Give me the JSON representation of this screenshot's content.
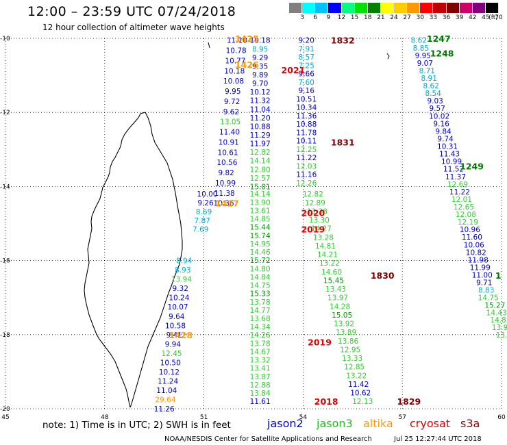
{
  "header": {
    "title": "12:00 – 23:59 UTC 07/24/2018",
    "subtitle": "12 hour collection of altimeter wave heights"
  },
  "scale": {
    "ticks": [
      "3",
      "6",
      "9",
      "12",
      "15",
      "18",
      "21",
      "24",
      "27",
      "30",
      "33",
      "36",
      "39",
      "42",
      "45",
      "70",
      "(ft)"
    ],
    "colors": [
      "#808080",
      "#00ffff",
      "#00c0ff",
      "#0000ff",
      "#00ff80",
      "#00e000",
      "#008000",
      "#ffff00",
      "#ffcc00",
      "#ff9900",
      "#ff0000",
      "#c00000",
      "#800000",
      "#cc0066",
      "#800080",
      "#000000"
    ]
  },
  "axes": {
    "lat_labels": [
      "-10",
      "-12",
      "-14",
      "-16",
      "-18",
      "-20"
    ],
    "lon_labels": [
      "45",
      "48",
      "51",
      "54",
      "57",
      "60"
    ],
    "lat_range": [
      -20,
      -10
    ],
    "lon_range": [
      45,
      60
    ]
  },
  "tracks": [
    {
      "name": "jason2-west",
      "lon_start": 52.0,
      "lat_start": -10.05,
      "lon_end": 51.6,
      "lat_end": -14.45,
      "color": "#0000cc",
      "values": [
        "11.10",
        "10.78",
        "10.77",
        "10.18",
        "10.08",
        "9.95",
        "9.72",
        "9.62",
        "13.05",
        "11.40",
        "10.91",
        "10.61",
        "10.56",
        "9.82",
        "10.99",
        "11.38",
        "10.36"
      ]
    },
    {
      "name": "jason2-west-b",
      "lon_start": 51.1,
      "lat_start": -14.2,
      "lon_end": 50.9,
      "lat_end": -15.15,
      "color": "#0000cc",
      "values": [
        "10.00",
        "9.26",
        "8.69",
        "7.87",
        "7.69"
      ]
    },
    {
      "name": "jason2-coast",
      "lon_start": 50.4,
      "lat_start": -16.0,
      "lon_end": 49.8,
      "lat_end": -20.0,
      "color": "#0000cc",
      "values": [
        "8.94",
        "8.93",
        "13.94",
        "9.32",
        "10.24",
        "10.07",
        "9.64",
        "10.58",
        "9.41",
        "9.94",
        "12.45",
        "10.50",
        "10.12",
        "11.24",
        "11.04",
        "29.64",
        "11.26"
      ]
    },
    {
      "name": "jason3-mid",
      "lon_start": 52.7,
      "lat_start": -10.05,
      "lon_end": 52.7,
      "lat_end": -14.0,
      "color": "#0000cc",
      "values": [
        "10.18",
        "8.95",
        "9.29",
        "9.35",
        "9.89",
        "9.70",
        "10.12",
        "11.32",
        "11.04",
        "11.20",
        "10.88",
        "11.29",
        "11.97",
        "12.82",
        "14.14",
        "12.80",
        "12.57",
        "15.01"
      ]
    },
    {
      "name": "jason3-mid-b",
      "lon_start": 52.7,
      "lat_start": -14.2,
      "lon_end": 52.7,
      "lat_end": -19.8,
      "color": "#22bb22",
      "values": [
        "14.14",
        "13.90",
        "13.61",
        "14.85",
        "15.44",
        "15.74",
        "14.95",
        "14.46",
        "15.72",
        "14.80",
        "14.84",
        "14.75",
        "15.33",
        "13.78",
        "14.77",
        "13.68",
        "14.34",
        "14.26",
        "13.78",
        "14.67",
        "13.32",
        "13.41",
        "13.87",
        "12.88",
        "13.84",
        "11.61"
      ]
    },
    {
      "name": "jason2-east",
      "lon_start": 54.1,
      "lat_start": -10.05,
      "lon_end": 54.1,
      "lat_end": -13.9,
      "color": "#0000cc",
      "values": [
        "9.20",
        "7.91",
        "8.57",
        "7.25",
        "9.66",
        "7.60",
        "9.16",
        "10.51",
        "10.34",
        "11.36",
        "10.88",
        "11.78",
        "10.11",
        "12.25",
        "11.22",
        "12.03",
        "11.16",
        "12.26"
      ]
    },
    {
      "name": "jason3-east",
      "lon_start": 54.3,
      "lat_start": -14.2,
      "lon_end": 55.8,
      "lat_end": -19.8,
      "color": "#22bb22",
      "values": [
        "12.82",
        "12.89",
        "13.38",
        "13.30",
        "14.27",
        "13.28",
        "14.81",
        "14.21",
        "13.22",
        "14.60",
        "15.45",
        "13.43",
        "13.97",
        "14.28",
        "15.05",
        "13.92",
        "13.89",
        "13.86",
        "12.95",
        "13.33",
        "12.85",
        "13.22",
        "11.42",
        "10.62",
        "12.13"
      ]
    },
    {
      "name": "altika-diag",
      "lon_start": 57.5,
      "lat_start": -10.05,
      "lon_end": 59.6,
      "lat_end": -17.0,
      "color": "#0000cc",
      "values": [
        "8.62",
        "8.85",
        "9.95",
        "9.07",
        "8.71",
        "8.91",
        "8.62",
        "8.54",
        "9.03",
        "9.57",
        "10.02",
        "9.16",
        "9.84",
        "9.74",
        "10.31",
        "11.43",
        "10.99",
        "11.52",
        "11.37",
        "12.69",
        "11.22",
        "12.01",
        "12.65",
        "12.08",
        "12.19",
        "10.96",
        "11.60",
        "10.06",
        "10.82",
        "11.98",
        "11.99",
        "11.00",
        "9.71",
        "8.83",
        "14.75"
      ]
    },
    {
      "name": "edge",
      "lon_start": 59.8,
      "lat_start": -17.2,
      "lon_end": 60.0,
      "lat_end": -18.0,
      "color": "#22bb22",
      "values": [
        "15.27",
        "14.43",
        "14.8",
        "13.9",
        "13."
      ]
    }
  ],
  "time_labels": [
    {
      "text": "1425",
      "color": "#ff9900",
      "lon": 52.3,
      "lat": -10.0
    },
    {
      "text": "1426",
      "color": "#ff9900",
      "lon": 52.3,
      "lat": -10.7
    },
    {
      "text": "1832",
      "color": "#800000",
      "lon": 55.2,
      "lat": -10.05
    },
    {
      "text": "2021",
      "color": "#dd0000",
      "lon": 53.7,
      "lat": -10.85
    },
    {
      "text": "1831",
      "color": "#800000",
      "lon": 55.2,
      "lat": -12.8
    },
    {
      "text": "1427",
      "color": "#ff9900",
      "lon": 51.7,
      "lat": -14.45
    },
    {
      "text": "2020",
      "color": "#dd0000",
      "lon": 54.3,
      "lat": -14.7
    },
    {
      "text": "2019",
      "color": "#dd0000",
      "lon": 54.3,
      "lat": -15.15
    },
    {
      "text": "1830",
      "color": "#800000",
      "lon": 56.4,
      "lat": -16.4
    },
    {
      "text": "1428",
      "color": "#ff9900",
      "lon": 50.3,
      "lat": -18.0
    },
    {
      "text": "2019",
      "color": "#dd0000",
      "lon": 54.5,
      "lat": -18.2
    },
    {
      "text": "2018",
      "color": "#dd0000",
      "lon": 54.7,
      "lat": -19.8
    },
    {
      "text": "1829",
      "color": "#800000",
      "lon": 57.2,
      "lat": -19.8
    },
    {
      "text": "1247",
      "color": "#007700",
      "lon": 58.1,
      "lat": -10.0
    },
    {
      "text": "1248",
      "color": "#007700",
      "lon": 58.2,
      "lat": -10.4
    },
    {
      "text": "1249",
      "color": "#007700",
      "lon": 59.1,
      "lat": -13.45
    },
    {
      "text": "1",
      "color": "#007700",
      "lon": 59.9,
      "lat": -16.4
    }
  ],
  "footer": {
    "note": "note: 1) Time is in UTC; 2) SWH is in feet",
    "legend": [
      {
        "label": "jason2",
        "color": "#0000cc"
      },
      {
        "label": "jason3",
        "color": "#22bb22"
      },
      {
        "label": "altika",
        "color": "#ff9900"
      },
      {
        "label": "cryosat",
        "color": "#dd0000"
      },
      {
        "label": "s3a",
        "color": "#800000"
      }
    ],
    "credit": "NOAA/NESDIS Center for Satellite Applications and Research",
    "timestamp": "Jul 25 12:27:44 UTC 2018"
  }
}
